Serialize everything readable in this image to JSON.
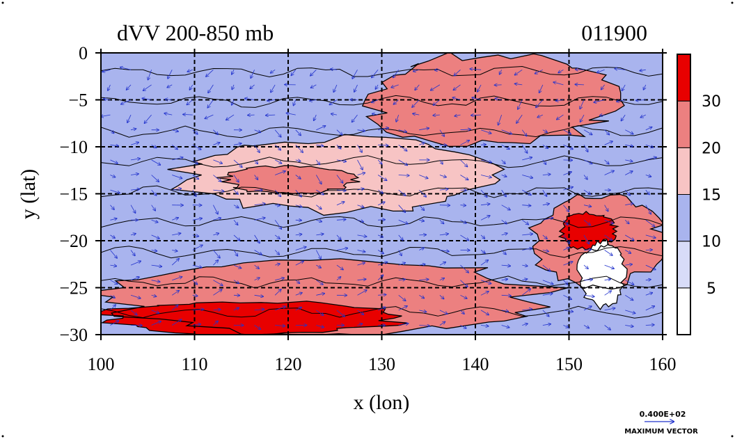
{
  "chart_data": {
    "type": "heatmap",
    "title": "dVV 200-850 mb",
    "time_label": "011900",
    "xlabel": "x (lon)",
    "ylabel": "y (lat)",
    "xlim": [
      100,
      160
    ],
    "ylim": [
      -30,
      0
    ],
    "x_ticks": [
      "100",
      "110",
      "120",
      "130",
      "140",
      "150",
      "160"
    ],
    "y_ticks": [
      "0",
      "−5",
      "−10",
      "−15",
      "−20",
      "−25",
      "−30"
    ],
    "grid": true,
    "colorbar": {
      "labels": [
        "5",
        "10",
        "15",
        "20",
        "30"
      ],
      "levels": [
        0,
        5,
        10,
        15,
        20,
        30,
        40
      ],
      "colors": [
        "#ffffff",
        "#d8dcf8",
        "#a9b4ee",
        "#f7c4c4",
        "#ec8080",
        "#e80000"
      ]
    },
    "field_regions": [
      {
        "name": "south-band",
        "level": 4,
        "lon": [
          100,
          148
        ],
        "lat": [
          -30,
          -22
        ]
      },
      {
        "name": "south-core",
        "level": 5,
        "lon": [
          100,
          132
        ],
        "lat": [
          -30,
          -26.5
        ]
      },
      {
        "name": "central-band",
        "level": 3,
        "lon": [
          108,
          142
        ],
        "lat": [
          -17,
          -9
        ]
      },
      {
        "name": "central-core",
        "level": 4,
        "lon": [
          113,
          127
        ],
        "lat": [
          -15,
          -12
        ]
      },
      {
        "name": "northeast-band",
        "level": 4,
        "lon": [
          128,
          155
        ],
        "lat": [
          -10,
          0
        ]
      },
      {
        "name": "east-jet",
        "level": 4,
        "lon": [
          146,
          160
        ],
        "lat": [
          -25,
          -15
        ]
      },
      {
        "name": "east-jet-core",
        "level": 5,
        "lon": [
          149,
          155
        ],
        "lat": [
          -21,
          -17
        ]
      },
      {
        "name": "east-minimum",
        "level": 0,
        "lon": [
          151,
          156
        ],
        "lat": [
          -27,
          -20
        ]
      }
    ],
    "vectors": {
      "reference_label": "0.400E+02",
      "reference_caption": "MAXIMUM VECTOR",
      "reference_magnitude": 40
    }
  }
}
